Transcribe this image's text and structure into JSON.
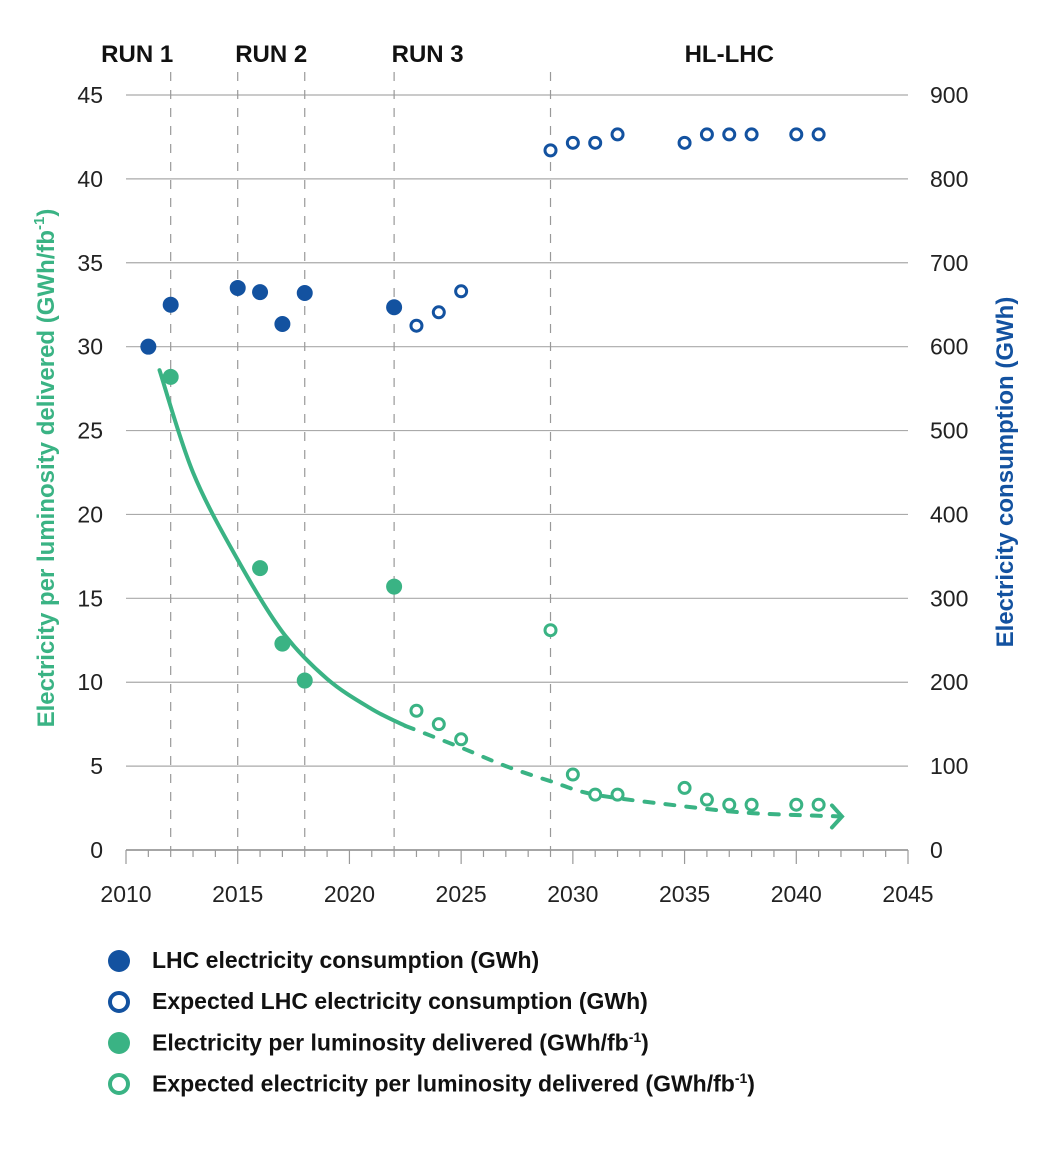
{
  "chart_data": {
    "type": "scatter",
    "x": {
      "range": [
        2010,
        2045
      ],
      "ticks": [
        "2010",
        "2015",
        "2020",
        "2025",
        "2030",
        "2035",
        "2040",
        "2045"
      ],
      "minor_tick_step": 1
    },
    "y_left": {
      "label_parts": [
        "Electricity per luminosity delivered (GWh/fb",
        "-1",
        ")"
      ],
      "range": [
        0,
        45
      ],
      "ticks": [
        "0",
        "5",
        "10",
        "15",
        "20",
        "25",
        "30",
        "35",
        "40",
        "45"
      ],
      "color": "#3ab384"
    },
    "y_right": {
      "label": "Electricity consumption (GWh)",
      "range": [
        0,
        900
      ],
      "ticks": [
        "0",
        "100",
        "200",
        "300",
        "400",
        "500",
        "600",
        "700",
        "800",
        "900"
      ],
      "color": "#1352a0"
    },
    "grid": "horizontal",
    "periods": [
      {
        "label": "RUN 1",
        "center": 2010.5
      },
      {
        "label": "RUN 2",
        "center": 2016.5
      },
      {
        "label": "RUN 3",
        "center": 2023.5
      },
      {
        "label": "HL-LHC",
        "center": 2037
      }
    ],
    "period_boundaries": [
      2012,
      2015,
      2018,
      2022,
      2029
    ],
    "series": [
      {
        "name": "LHC electricity consumption (GWh)",
        "axis": "right",
        "style": "filled",
        "color": "#1352a0",
        "x": [
          2011,
          2012,
          2015,
          2016,
          2017,
          2018,
          2022
        ],
        "y": [
          600,
          650,
          670,
          665,
          627,
          664,
          647
        ]
      },
      {
        "name": "Expected LHC electricity consumption (GWh)",
        "axis": "right",
        "style": "open",
        "color": "#1352a0",
        "x": [
          2023,
          2024,
          2025,
          2029,
          2030,
          2031,
          2032,
          2035,
          2036,
          2037,
          2038,
          2040,
          2041
        ],
        "y": [
          625,
          641,
          666,
          834,
          843,
          843,
          853,
          843,
          853,
          853,
          853,
          853,
          853
        ]
      },
      {
        "name_parts": [
          "Electricity per luminosity delivered (GWh/fb",
          "-1",
          ")"
        ],
        "axis": "left",
        "style": "filled",
        "color": "#3ab384",
        "x": [
          2012,
          2016,
          2017,
          2018,
          2022
        ],
        "y": [
          28.2,
          16.8,
          12.3,
          10.1,
          15.7
        ]
      },
      {
        "name_parts": [
          "Expected electricity per luminosity delivered (GWh/fb",
          "-1",
          ")"
        ],
        "axis": "left",
        "style": "open",
        "color": "#3ab384",
        "x": [
          2023,
          2024,
          2025,
          2029,
          2030,
          2031,
          2032,
          2035,
          2036,
          2037,
          2038,
          2040,
          2041
        ],
        "y": [
          8.3,
          7.5,
          6.6,
          13.1,
          4.5,
          3.3,
          3.3,
          3.7,
          3.0,
          2.7,
          2.7,
          2.7,
          2.7
        ]
      }
    ],
    "trend_line": {
      "color": "#3ab384",
      "solid": {
        "x": [
          2011.5,
          2013,
          2015,
          2017,
          2019,
          2021,
          2022.5
        ],
        "y": [
          28.6,
          22.5,
          17.3,
          13.0,
          10.2,
          8.4,
          7.4
        ]
      },
      "dashed": {
        "x": [
          2022.5,
          2025,
          2027,
          2029,
          2031,
          2035,
          2038,
          2042
        ],
        "y": [
          7.4,
          6.1,
          5.0,
          4.1,
          3.3,
          2.6,
          2.2,
          2.0
        ]
      },
      "arrow": "end"
    },
    "legend": "bottom"
  }
}
